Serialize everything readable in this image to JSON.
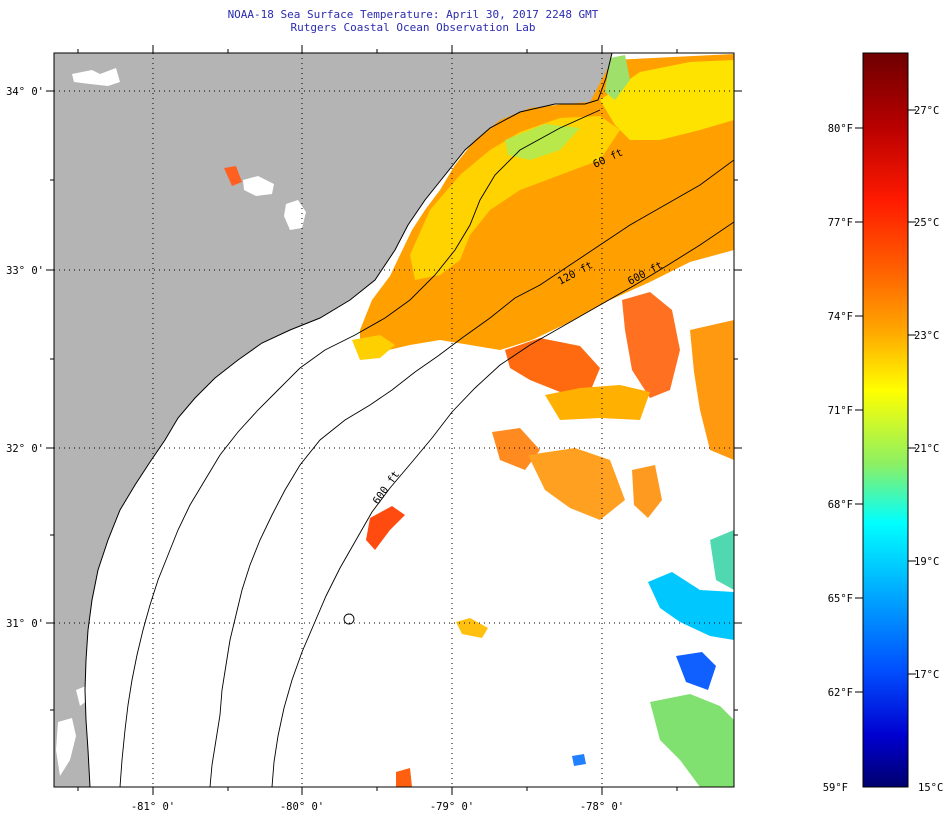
{
  "header": {
    "title": "NOAA-18 Sea Surface Temperature:  April 30, 2017 2248 GMT",
    "subtitle": "Rutgers Coastal Ocean Observation Lab"
  },
  "map": {
    "lat_labels": [
      "34° 0'",
      "33° 0'",
      "32° 0'",
      "31° 0'"
    ],
    "lon_labels": [
      "-81° 0'",
      "-80° 0'",
      "-79° 0'",
      "-78° 0'"
    ],
    "contour_labels": [
      "120 ft",
      "600 ft",
      "60 ft",
      "600 ft"
    ],
    "colors": {
      "land": "#b4b4b4",
      "no_data": "#ffffff",
      "coast": "#000000",
      "graticule": "#000000"
    }
  },
  "colorbar": {
    "f_labels": [
      "80°F",
      "77°F",
      "74°F",
      "71°F",
      "68°F",
      "65°F",
      "62°F",
      "59°F"
    ],
    "c_labels": [
      "27°C",
      "25°C",
      "23°C",
      "21°C",
      "19°C",
      "17°C",
      "15°C"
    ],
    "colors": [
      "#6e0000",
      "#b40000",
      "#ff0000",
      "#ff6a00",
      "#ffb000",
      "#ffff00",
      "#9cf05a",
      "#00ffff",
      "#00aaff",
      "#0055ff",
      "#0000d0",
      "#00006e"
    ]
  }
}
